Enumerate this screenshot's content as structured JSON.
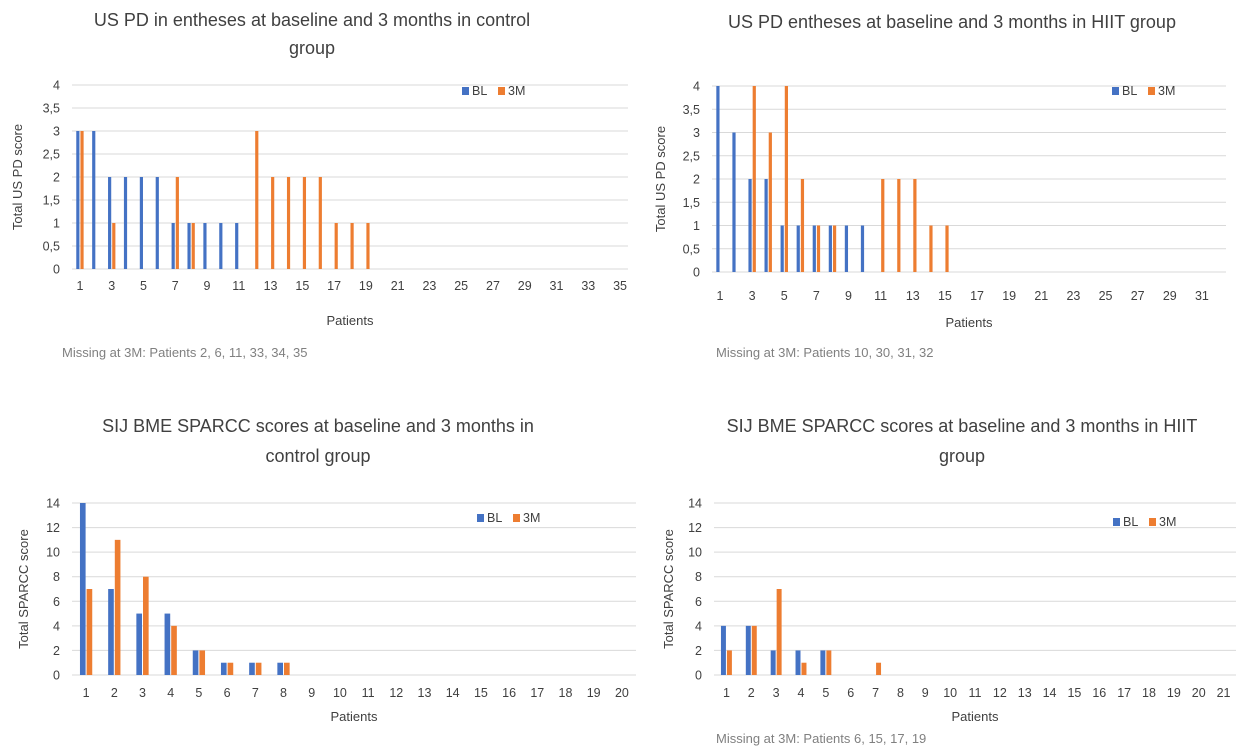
{
  "colors": {
    "bl": "#4472c4",
    "m3": "#ed7d31",
    "grid": "#d9d9d9",
    "text": "#404040",
    "note": "#808080"
  },
  "chart_data": [
    {
      "type": "bar",
      "title_lines": [
        "US PD in entheses at baseline and 3 months in control",
        "group"
      ],
      "xlabel": "Patients",
      "ylabel": "Total US PD score",
      "ylim": [
        0,
        4
      ],
      "yticks": [
        "0",
        "0,5",
        "1",
        "1,5",
        "2",
        "2,5",
        "3",
        "3,5",
        "4"
      ],
      "categories": [
        1,
        2,
        3,
        4,
        5,
        6,
        7,
        8,
        9,
        10,
        11,
        12,
        13,
        14,
        15,
        16,
        17,
        18,
        19,
        20,
        21,
        22,
        23,
        24,
        25,
        26,
        27,
        28,
        29,
        30,
        31,
        32,
        33,
        34,
        35
      ],
      "xtick_labels": [
        "1",
        "3",
        "5",
        "7",
        "9",
        "11",
        "13",
        "15",
        "17",
        "19",
        "21",
        "23",
        "25",
        "27",
        "29",
        "31",
        "33",
        "35"
      ],
      "series": [
        {
          "name": "BL",
          "values": [
            3,
            3,
            2,
            2,
            2,
            2,
            1,
            1,
            1,
            1,
            1,
            0,
            0,
            0,
            0,
            0,
            0,
            0,
            0,
            0,
            0,
            0,
            0,
            0,
            0,
            0,
            0,
            0,
            0,
            0,
            0,
            0,
            0,
            0,
            0
          ]
        },
        {
          "name": "3M",
          "values": [
            3,
            0,
            1,
            0,
            0,
            0,
            2,
            1,
            0,
            0,
            0,
            3,
            2,
            2,
            2,
            2,
            1,
            1,
            1,
            0,
            0,
            0,
            0,
            0,
            0,
            0,
            0,
            0,
            0,
            0,
            0,
            0,
            0,
            0,
            0
          ]
        }
      ],
      "legend_position": "top-right",
      "grid": true,
      "note": "Missing at 3M: Patients 2, 6, 11, 33, 34, 35"
    },
    {
      "type": "bar",
      "title_lines": [
        "US PD entheses at baseline and 3 months in HIIT group"
      ],
      "xlabel": "Patients",
      "ylabel": "Total US PD score",
      "ylim": [
        0,
        4
      ],
      "yticks": [
        "0",
        "0,5",
        "1",
        "1,5",
        "2",
        "2,5",
        "3",
        "3,5",
        "4"
      ],
      "categories": [
        1,
        2,
        3,
        4,
        5,
        6,
        7,
        8,
        9,
        10,
        11,
        12,
        13,
        14,
        15,
        16,
        17,
        18,
        19,
        20,
        21,
        22,
        23,
        24,
        25,
        26,
        27,
        28,
        29,
        30,
        31,
        32
      ],
      "xtick_labels": [
        "1",
        "3",
        "5",
        "7",
        "9",
        "11",
        "13",
        "15",
        "17",
        "19",
        "21",
        "23",
        "25",
        "27",
        "29",
        "31"
      ],
      "series": [
        {
          "name": "BL",
          "values": [
            4,
            3,
            2,
            2,
            1,
            1,
            1,
            1,
            1,
            1,
            0,
            0,
            0,
            0,
            0,
            0,
            0,
            0,
            0,
            0,
            0,
            0,
            0,
            0,
            0,
            0,
            0,
            0,
            0,
            0,
            0,
            0
          ]
        },
        {
          "name": "3M",
          "values": [
            0,
            0,
            4,
            3,
            4,
            2,
            1,
            1,
            0,
            0,
            2,
            2,
            2,
            1,
            1,
            0,
            0,
            0,
            0,
            0,
            0,
            0,
            0,
            0,
            0,
            0,
            0,
            0,
            0,
            0,
            0,
            0
          ]
        }
      ],
      "legend_position": "top-right",
      "grid": true,
      "note": "Missing at 3M: Patients 10, 30, 31, 32"
    },
    {
      "type": "bar",
      "title_lines": [
        "SIJ BME SPARCC scores at baseline and 3 months in",
        "control group"
      ],
      "xlabel": "Patients",
      "ylabel": "Total SPARCC score",
      "ylim": [
        0,
        14
      ],
      "yticks": [
        "0",
        "2",
        "4",
        "6",
        "8",
        "10",
        "12",
        "14"
      ],
      "categories": [
        1,
        2,
        3,
        4,
        5,
        6,
        7,
        8,
        9,
        10,
        11,
        12,
        13,
        14,
        15,
        16,
        17,
        18,
        19,
        20
      ],
      "xtick_labels": [
        "1",
        "2",
        "3",
        "4",
        "5",
        "6",
        "7",
        "8",
        "9",
        "10",
        "11",
        "12",
        "13",
        "14",
        "15",
        "16",
        "17",
        "18",
        "19",
        "20"
      ],
      "series": [
        {
          "name": "BL",
          "values": [
            14,
            7,
            5,
            5,
            2,
            1,
            1,
            1,
            0,
            0,
            0,
            0,
            0,
            0,
            0,
            0,
            0,
            0,
            0,
            0
          ]
        },
        {
          "name": "3M",
          "values": [
            7,
            11,
            8,
            4,
            2,
            1,
            1,
            1,
            0,
            0,
            0,
            0,
            0,
            0,
            0,
            0,
            0,
            0,
            0,
            0
          ]
        }
      ],
      "legend_position": "top-right",
      "grid": true,
      "note": ""
    },
    {
      "type": "bar",
      "title_lines": [
        "SIJ BME SPARCC scores at baseline and 3 months in HIIT",
        "group"
      ],
      "xlabel": "Patients",
      "ylabel": "Total SPARCC score",
      "ylim": [
        0,
        14
      ],
      "yticks": [
        "0",
        "2",
        "4",
        "6",
        "8",
        "10",
        "12",
        "14"
      ],
      "categories": [
        1,
        2,
        3,
        4,
        5,
        6,
        7,
        8,
        9,
        10,
        11,
        12,
        13,
        14,
        15,
        16,
        17,
        18,
        19,
        20,
        21
      ],
      "xtick_labels": [
        "1",
        "2",
        "3",
        "4",
        "5",
        "6",
        "7",
        "8",
        "9",
        "10",
        "11",
        "12",
        "13",
        "14",
        "15",
        "16",
        "17",
        "18",
        "19",
        "20",
        "21"
      ],
      "series": [
        {
          "name": "BL",
          "values": [
            4,
            4,
            2,
            2,
            2,
            0,
            0,
            0,
            0,
            0,
            0,
            0,
            0,
            0,
            0,
            0,
            0,
            0,
            0,
            0,
            0
          ]
        },
        {
          "name": "3M",
          "values": [
            2,
            4,
            7,
            1,
            2,
            0,
            1,
            0,
            0,
            0,
            0,
            0,
            0,
            0,
            0,
            0,
            0,
            0,
            0,
            0,
            0
          ]
        }
      ],
      "legend_position": "top-right",
      "grid": true,
      "note": "Missing at 3M: Patients 6, 15, 17, 19"
    }
  ]
}
